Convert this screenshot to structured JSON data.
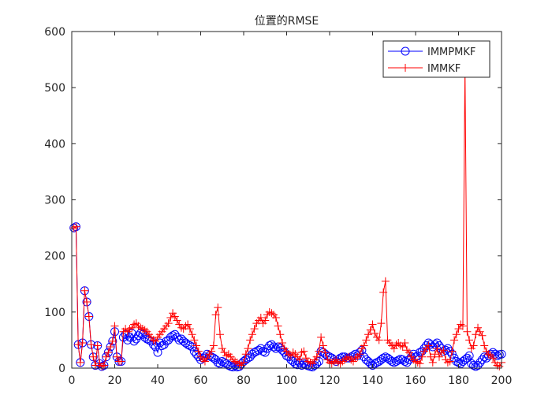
{
  "chart_data": {
    "type": "line",
    "title": "位置的RMSE",
    "xlabel": "",
    "ylabel": "",
    "xlim": [
      0,
      200
    ],
    "ylim": [
      0,
      600
    ],
    "xticks": [
      0,
      20,
      40,
      60,
      80,
      100,
      120,
      140,
      160,
      180,
      200
    ],
    "yticks": [
      0,
      100,
      200,
      300,
      400,
      500,
      600
    ],
    "xtick_labels": [
      "0",
      "20",
      "40",
      "60",
      "80",
      "100",
      "120",
      "140",
      "160",
      "180",
      "200"
    ],
    "ytick_labels": [
      "0",
      "100",
      "200",
      "300",
      "400",
      "500",
      "600"
    ],
    "grid": false,
    "legend_position": "top-right",
    "series": [
      {
        "name": "IMMPMKF",
        "color": "#0000ff",
        "marker": "circle",
        "x": [
          1,
          2,
          3,
          4,
          5,
          6,
          7,
          8,
          9,
          10,
          11,
          12,
          13,
          14,
          15,
          16,
          17,
          18,
          19,
          20,
          21,
          22,
          23,
          24,
          25,
          26,
          27,
          28,
          29,
          30,
          31,
          32,
          33,
          34,
          35,
          36,
          37,
          38,
          39,
          40,
          41,
          42,
          43,
          44,
          45,
          46,
          47,
          48,
          49,
          50,
          51,
          52,
          53,
          54,
          55,
          56,
          57,
          58,
          59,
          60,
          61,
          62,
          63,
          64,
          65,
          66,
          67,
          68,
          69,
          70,
          71,
          72,
          73,
          74,
          75,
          76,
          77,
          78,
          79,
          80,
          81,
          82,
          83,
          84,
          85,
          86,
          87,
          88,
          89,
          90,
          91,
          92,
          93,
          94,
          95,
          96,
          97,
          98,
          99,
          100,
          101,
          102,
          103,
          104,
          105,
          106,
          107,
          108,
          109,
          110,
          111,
          112,
          113,
          114,
          115,
          116,
          117,
          118,
          119,
          120,
          121,
          122,
          123,
          124,
          125,
          126,
          127,
          128,
          129,
          130,
          131,
          132,
          133,
          134,
          135,
          136,
          137,
          138,
          139,
          140,
          141,
          142,
          143,
          144,
          145,
          146,
          147,
          148,
          149,
          150,
          151,
          152,
          153,
          154,
          155,
          156,
          157,
          158,
          159,
          160,
          161,
          162,
          163,
          164,
          165,
          166,
          167,
          168,
          169,
          170,
          171,
          172,
          173,
          174,
          175,
          176,
          177,
          178,
          179,
          180,
          181,
          182,
          183,
          184,
          185,
          186,
          187,
          188,
          189,
          190,
          191,
          192,
          193,
          194,
          195,
          196,
          197,
          198,
          199,
          200
        ],
        "y": [
          250,
          252,
          42,
          10,
          45,
          138,
          118,
          92,
          42,
          20,
          5,
          40,
          8,
          3,
          5,
          20,
          28,
          38,
          48,
          65,
          20,
          12,
          12,
          55,
          60,
          50,
          55,
          62,
          48,
          52,
          58,
          62,
          60,
          55,
          52,
          50,
          48,
          42,
          38,
          28,
          45,
          40,
          42,
          48,
          50,
          55,
          58,
          60,
          55,
          50,
          52,
          48,
          45,
          42,
          40,
          38,
          30,
          25,
          20,
          15,
          18,
          20,
          25,
          22,
          20,
          18,
          15,
          10,
          8,
          12,
          10,
          8,
          5,
          3,
          2,
          5,
          2,
          3,
          8,
          12,
          15,
          18,
          20,
          25,
          28,
          30,
          32,
          35,
          30,
          28,
          35,
          40,
          42,
          38,
          35,
          38,
          36,
          32,
          28,
          22,
          20,
          15,
          12,
          8,
          6,
          10,
          5,
          8,
          6,
          4,
          3,
          2,
          5,
          8,
          12,
          30,
          28,
          25,
          22,
          20,
          18,
          15,
          12,
          15,
          18,
          20,
          20,
          18,
          18,
          20,
          22,
          25,
          22,
          28,
          32,
          20,
          15,
          12,
          8,
          5,
          8,
          10,
          12,
          15,
          18,
          20,
          18,
          15,
          12,
          10,
          12,
          14,
          16,
          15,
          12,
          10,
          15,
          20,
          25,
          20,
          22,
          28,
          30,
          35,
          40,
          45,
          42,
          38,
          42,
          45,
          40,
          35,
          30,
          32,
          35,
          30,
          25,
          18,
          12,
          10,
          8,
          12,
          15,
          18,
          22,
          8,
          5,
          3,
          5,
          10,
          15,
          20,
          18,
          22,
          25,
          28,
          25,
          22,
          24,
          25
        ]
      },
      {
        "name": "IMMKF",
        "color": "#ff0000",
        "marker": "plus",
        "x": [
          1,
          2,
          3,
          4,
          5,
          6,
          7,
          8,
          9,
          10,
          11,
          12,
          13,
          14,
          15,
          16,
          17,
          18,
          19,
          20,
          21,
          22,
          23,
          24,
          25,
          26,
          27,
          28,
          29,
          30,
          31,
          32,
          33,
          34,
          35,
          36,
          37,
          38,
          39,
          40,
          41,
          42,
          43,
          44,
          45,
          46,
          47,
          48,
          49,
          50,
          51,
          52,
          53,
          54,
          55,
          56,
          57,
          58,
          59,
          60,
          61,
          62,
          63,
          64,
          65,
          66,
          67,
          68,
          69,
          70,
          71,
          72,
          73,
          74,
          75,
          76,
          77,
          78,
          79,
          80,
          81,
          82,
          83,
          84,
          85,
          86,
          87,
          88,
          89,
          90,
          91,
          92,
          93,
          94,
          95,
          96,
          97,
          98,
          99,
          100,
          101,
          102,
          103,
          104,
          105,
          106,
          107,
          108,
          109,
          110,
          111,
          112,
          113,
          114,
          115,
          116,
          117,
          118,
          119,
          120,
          121,
          122,
          123,
          124,
          125,
          126,
          127,
          128,
          129,
          130,
          131,
          132,
          133,
          134,
          135,
          136,
          137,
          138,
          139,
          140,
          141,
          142,
          143,
          144,
          145,
          146,
          147,
          148,
          149,
          150,
          151,
          152,
          153,
          154,
          155,
          156,
          157,
          158,
          159,
          160,
          161,
          162,
          163,
          164,
          165,
          166,
          167,
          168,
          169,
          170,
          171,
          172,
          173,
          174,
          175,
          176,
          177,
          178,
          179,
          180,
          181,
          182,
          183,
          184,
          185,
          186,
          187,
          188,
          189,
          190,
          191,
          192,
          193,
          194,
          195,
          196,
          197,
          198,
          199,
          200
        ],
        "y": [
          250,
          252,
          42,
          10,
          45,
          138,
          118,
          92,
          42,
          20,
          5,
          40,
          8,
          3,
          5,
          20,
          28,
          38,
          48,
          75,
          20,
          12,
          12,
          65,
          70,
          65,
          70,
          72,
          78,
          80,
          75,
          72,
          70,
          68,
          65,
          60,
          55,
          50,
          48,
          55,
          60,
          65,
          70,
          75,
          80,
          90,
          98,
          92,
          85,
          78,
          72,
          70,
          75,
          78,
          70,
          60,
          50,
          40,
          30,
          20,
          15,
          12,
          18,
          25,
          30,
          40,
          95,
          108,
          60,
          35,
          28,
          22,
          25,
          20,
          15,
          12,
          10,
          8,
          5,
          10,
          25,
          35,
          50,
          60,
          70,
          80,
          85,
          90,
          80,
          85,
          95,
          100,
          98,
          95,
          90,
          75,
          60,
          45,
          35,
          30,
          25,
          22,
          28,
          25,
          20,
          15,
          28,
          30,
          18,
          12,
          10,
          8,
          15,
          20,
          30,
          55,
          40,
          28,
          15,
          10,
          8,
          12,
          15,
          10,
          8,
          12,
          15,
          18,
          20,
          15,
          12,
          18,
          20,
          25,
          35,
          40,
          50,
          60,
          68,
          78,
          62,
          55,
          50,
          80,
          135,
          155,
          50,
          45,
          40,
          35,
          42,
          45,
          40,
          38,
          45,
          32,
          28,
          20,
          15,
          12,
          10,
          8,
          20,
          30,
          35,
          40,
          20,
          10,
          25,
          35,
          20,
          28,
          32,
          15,
          10,
          12,
          30,
          50,
          60,
          70,
          78,
          75,
          540,
          65,
          50,
          35,
          40,
          60,
          72,
          65,
          58,
          40,
          30,
          25,
          22,
          18,
          10,
          5,
          3,
          10
        ]
      }
    ]
  }
}
